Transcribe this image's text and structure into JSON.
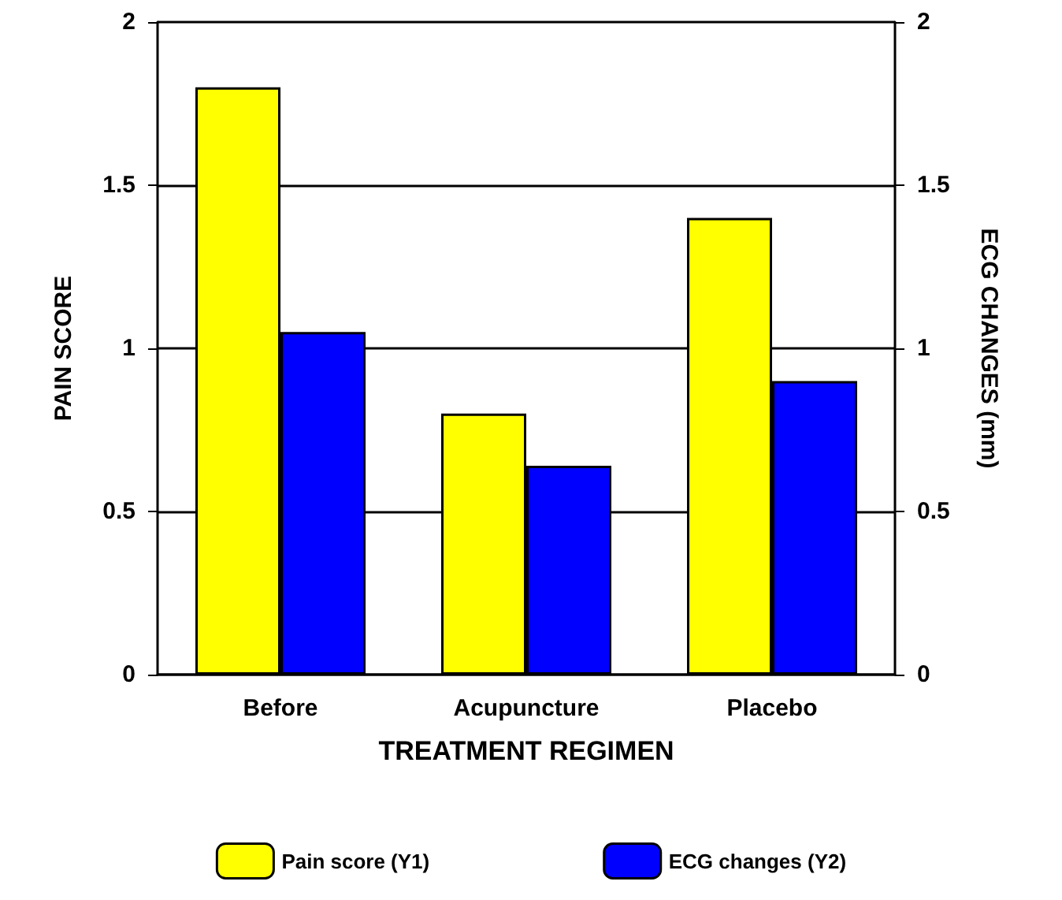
{
  "chart_data": {
    "type": "bar",
    "xlabel": "TREATMENT REGIMEN",
    "ylabel": "PAIN SCORE",
    "y2label": "ECG CHANGES (mm)",
    "categories": [
      "Before",
      "Acupuncture",
      "Placebo"
    ],
    "series": [
      {
        "name": "Pain score (Y1)",
        "color": "#ffff00",
        "values": [
          1.8,
          0.8,
          1.4
        ]
      },
      {
        "name": "ECG changes (Y2)",
        "color": "#0000ff",
        "values": [
          1.05,
          0.64,
          0.9
        ],
        "axis": "y2"
      }
    ],
    "ylim": [
      0,
      2
    ],
    "yticks": [
      0,
      0.5,
      1,
      1.5,
      2
    ],
    "y2lim": [
      0,
      2
    ],
    "y2ticks": [
      0,
      0.5,
      1,
      1.5,
      2
    ],
    "grid": "y",
    "legend": "bottom"
  }
}
